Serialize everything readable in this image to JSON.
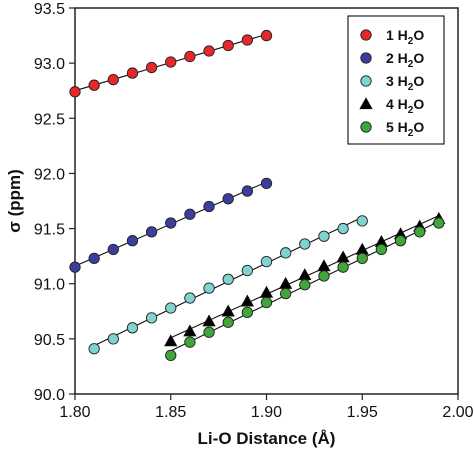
{
  "chart_data": {
    "type": "scatter",
    "title": "",
    "xlabel": "Li-O Distance (Å)",
    "ylabel": "σ (ppm)",
    "xlim": [
      1.8,
      2.0
    ],
    "ylim": [
      90.0,
      93.5
    ],
    "x_ticks": [
      "1.80",
      "1.85",
      "1.90",
      "1.95",
      "2.00"
    ],
    "y_ticks": [
      "90.0",
      "90.5",
      "91.0",
      "91.5",
      "92.0",
      "92.5",
      "93.0",
      "93.5"
    ],
    "grid": false,
    "legend_position": "top-right",
    "series": [
      {
        "name": "1 H2O",
        "label_main": "1 H",
        "label_sub": "2",
        "label_tail": "O",
        "marker": "circle",
        "color": "#e8272b",
        "fit_line": true,
        "x": [
          1.8,
          1.81,
          1.82,
          1.83,
          1.84,
          1.85,
          1.86,
          1.87,
          1.88,
          1.89,
          1.9
        ],
        "y": [
          92.74,
          92.8,
          92.85,
          92.91,
          92.96,
          93.01,
          93.06,
          93.11,
          93.16,
          93.21,
          93.25
        ]
      },
      {
        "name": "2 H2O",
        "label_main": "2 H",
        "label_sub": "2",
        "label_tail": "O",
        "marker": "circle",
        "color": "#3a3f9e",
        "fit_line": true,
        "x": [
          1.8,
          1.81,
          1.82,
          1.83,
          1.84,
          1.85,
          1.86,
          1.87,
          1.88,
          1.89,
          1.9
        ],
        "y": [
          91.15,
          91.23,
          91.31,
          91.39,
          91.47,
          91.55,
          91.63,
          91.7,
          91.77,
          91.84,
          91.91
        ]
      },
      {
        "name": "3 H2O",
        "label_main": "3 H",
        "label_sub": "2",
        "label_tail": "O",
        "marker": "circle",
        "color": "#80d4d0",
        "fit_line": true,
        "x": [
          1.81,
          1.82,
          1.83,
          1.84,
          1.85,
          1.86,
          1.87,
          1.88,
          1.89,
          1.9,
          1.91,
          1.92,
          1.93,
          1.94,
          1.95
        ],
        "y": [
          90.41,
          90.5,
          90.6,
          90.69,
          90.78,
          90.87,
          90.96,
          91.04,
          91.12,
          91.2,
          91.28,
          91.36,
          91.43,
          91.5,
          91.57
        ]
      },
      {
        "name": "4 H2O",
        "label_main": "4 H",
        "label_sub": "2",
        "label_tail": "O",
        "marker": "triangle",
        "color": "#000000",
        "fit_line": true,
        "x": [
          1.85,
          1.86,
          1.87,
          1.88,
          1.89,
          1.9,
          1.91,
          1.92,
          1.93,
          1.94,
          1.95,
          1.96,
          1.97,
          1.98,
          1.99
        ],
        "y": [
          90.48,
          90.57,
          90.66,
          90.75,
          90.84,
          90.92,
          91.0,
          91.08,
          91.16,
          91.24,
          91.31,
          91.38,
          91.45,
          91.52,
          91.59
        ]
      },
      {
        "name": "5 H2O",
        "label_main": "5 H",
        "label_sub": "2",
        "label_tail": "O",
        "marker": "circle",
        "color": "#3fa63b",
        "fit_line": true,
        "x": [
          1.85,
          1.86,
          1.87,
          1.88,
          1.89,
          1.9,
          1.91,
          1.92,
          1.93,
          1.94,
          1.95,
          1.96,
          1.97,
          1.98,
          1.99
        ],
        "y": [
          90.35,
          90.47,
          90.56,
          90.65,
          90.74,
          90.83,
          90.91,
          90.99,
          91.07,
          91.15,
          91.23,
          91.31,
          91.39,
          91.47,
          91.55
        ]
      }
    ]
  }
}
